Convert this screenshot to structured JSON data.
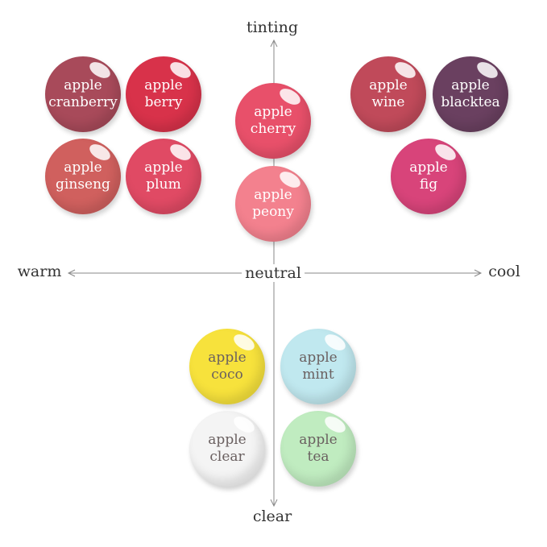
{
  "axes": {
    "top": "tinting",
    "bottom": "clear",
    "left": "warm",
    "right": "cool",
    "center": "neutral"
  },
  "shades": [
    {
      "line1": "apple",
      "line2": "cranberry",
      "color": "#a84a5a",
      "text_color": "#ffffff"
    },
    {
      "line1": "apple",
      "line2": "berry",
      "color": "#d8324a",
      "text_color": "#ffffff"
    },
    {
      "line1": "apple",
      "line2": "ginseng",
      "color": "#d0605e",
      "text_color": "#ffffff"
    },
    {
      "line1": "apple",
      "line2": "plum",
      "color": "#e04a64",
      "text_color": "#ffffff"
    },
    {
      "line1": "apple",
      "line2": "cherry",
      "color": "#e8506a",
      "text_color": "#ffffff"
    },
    {
      "line1": "apple",
      "line2": "peony",
      "color": "#f3818e",
      "text_color": "#ffffff"
    },
    {
      "line1": "apple",
      "line2": "wine",
      "color": "#c04a5a",
      "text_color": "#ffffff"
    },
    {
      "line1": "apple",
      "line2": "blacktea",
      "color": "#6a4060",
      "text_color": "#ffffff"
    },
    {
      "line1": "apple",
      "line2": "fig",
      "color": "#d8447a",
      "text_color": "#ffffff"
    },
    {
      "line1": "apple",
      "line2": "coco",
      "color": "#f7e23c",
      "text_color": "#6a6060"
    },
    {
      "line1": "apple",
      "line2": "mint",
      "color": "#c0e8ef",
      "text_color": "#6a6060"
    },
    {
      "line1": "apple",
      "line2": "clear",
      "color": "#f4f4f4",
      "text_color": "#6a6060"
    },
    {
      "line1": "apple",
      "line2": "tea",
      "color": "#c0ecc0",
      "text_color": "#6a6060"
    }
  ]
}
